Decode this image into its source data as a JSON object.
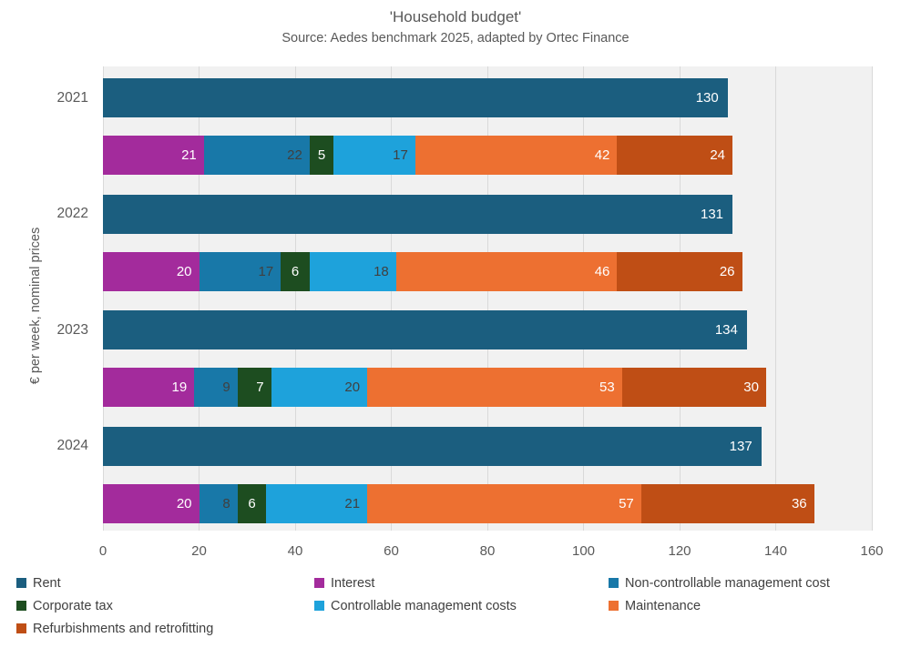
{
  "title": "'Household budget'",
  "subtitle": "Source: Aedes benchmark 2025, adapted by Ortec Finance",
  "chart_data": {
    "type": "bar",
    "orientation": "horizontal-stacked",
    "title": "'Household budget'",
    "subtitle": "Source: Aedes benchmark 2025, adapted by Ortec Finance",
    "ylabel": "€ per week, nominal prices",
    "xlabel": "",
    "xlim": [
      0,
      160
    ],
    "xticks": [
      0,
      20,
      40,
      60,
      80,
      100,
      120,
      140,
      160
    ],
    "grid": true,
    "legend_position": "bottom",
    "categories": [
      "2021",
      "2022",
      "2023",
      "2024"
    ],
    "series": [
      {
        "name": "Rent",
        "row": "rent",
        "color": "#1b5e7f",
        "label_color": "#ffffff",
        "values": [
          130,
          131,
          134,
          137
        ]
      },
      {
        "name": "Interest",
        "row": "costs",
        "color": "#a32b9c",
        "label_color": "#ffffff",
        "values": [
          21,
          20,
          19,
          20
        ]
      },
      {
        "name": "Non-controllable management cost",
        "row": "costs",
        "color": "#1878a8",
        "label_color": "#404040",
        "values": [
          22,
          17,
          9,
          8
        ]
      },
      {
        "name": "Corporate tax",
        "row": "costs",
        "color": "#1d4d20",
        "label_color": "#ffffff",
        "values": [
          5,
          6,
          7,
          6
        ]
      },
      {
        "name": "Controllable management costs",
        "row": "costs",
        "color": "#1ea2db",
        "label_color": "#404040",
        "values": [
          17,
          18,
          20,
          21
        ]
      },
      {
        "name": "Maintenance",
        "row": "costs",
        "color": "#ed7031",
        "label_color": "#ffffff",
        "values": [
          42,
          46,
          53,
          57
        ]
      },
      {
        "name": "Refurbishments and retrofitting",
        "row": "costs",
        "color": "#bf4e15",
        "label_color": "#ffffff",
        "values": [
          24,
          26,
          30,
          36
        ]
      }
    ],
    "legend": [
      "Rent",
      "Interest",
      "Non-controllable management cost",
      "Corporate tax",
      "Controllable management costs",
      "Maintenance",
      "Refurbishments and retrofitting"
    ]
  },
  "colors": {
    "plot_background": "#f1f1f1",
    "gridline": "#d9d9d9",
    "axis_text": "#595959",
    "legend_text": "#404040"
  }
}
